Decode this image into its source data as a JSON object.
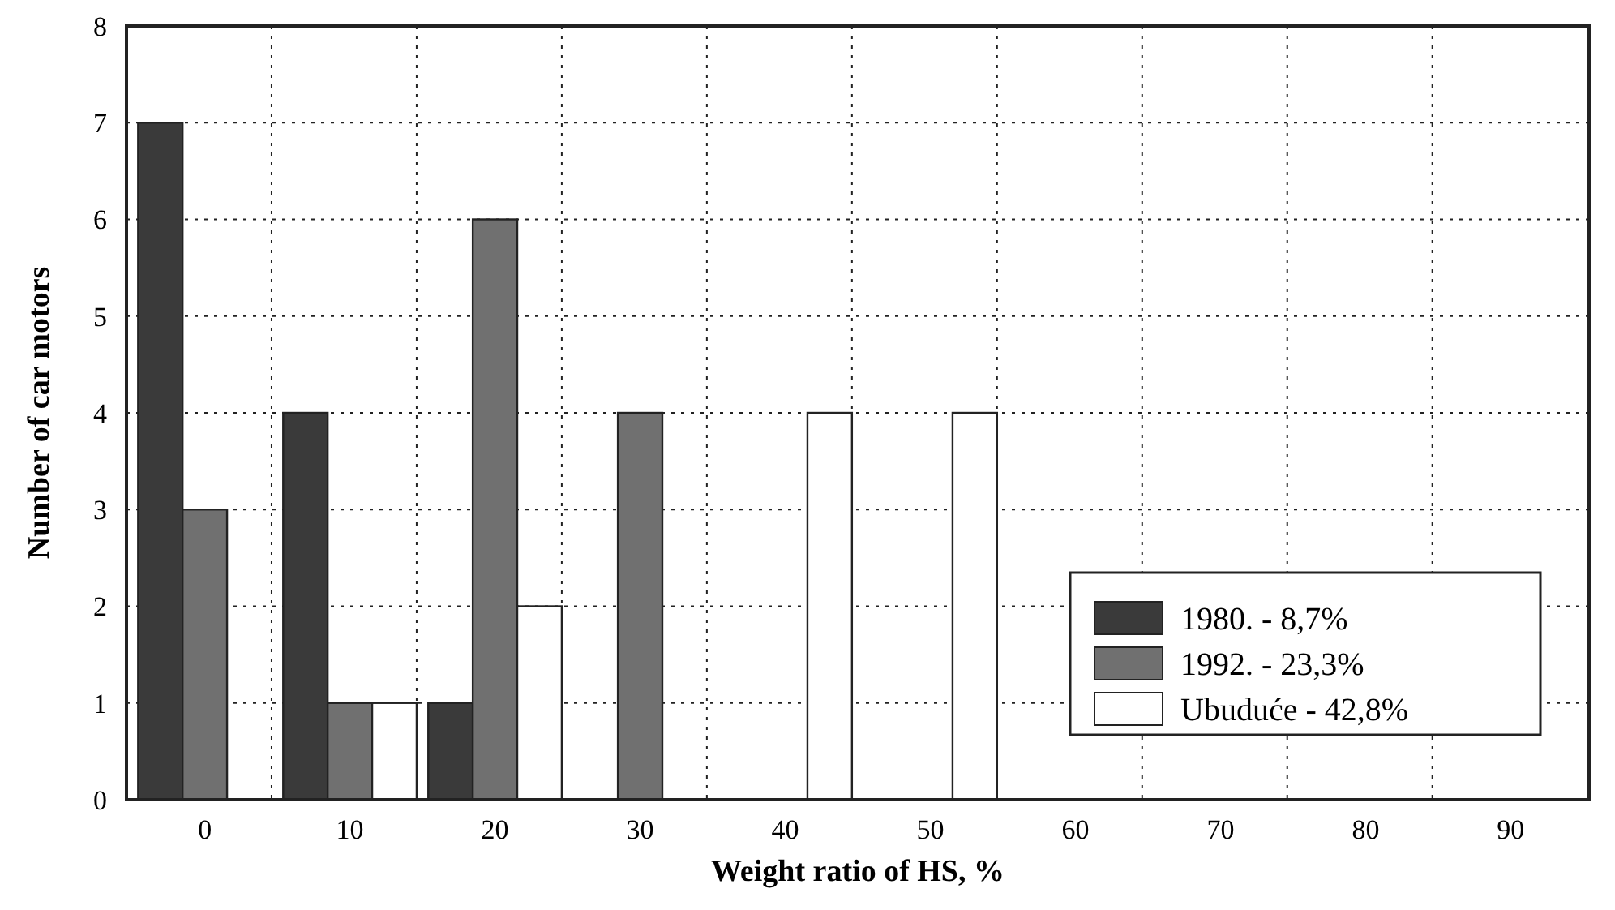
{
  "chart_data": {
    "type": "bar",
    "xlabel": "Weight ratio of HS, %",
    "ylabel": "Number of car motors",
    "categories": [
      "0",
      "10",
      "20",
      "30",
      "40",
      "50",
      "60",
      "70",
      "80",
      "90"
    ],
    "series": [
      {
        "name": "1980. - 8,7%",
        "color": "#3a3a3a",
        "values": [
          7,
          4,
          1,
          0,
          0,
          0,
          0,
          0,
          0,
          0
        ]
      },
      {
        "name": "1992. - 23,3%",
        "color": "#707070",
        "values": [
          3,
          1,
          6,
          4,
          0,
          0,
          0,
          0,
          0,
          0
        ]
      },
      {
        "name": "Ubuduće - 42,8%",
        "color": "#ffffff",
        "values": [
          0,
          1,
          2,
          0,
          4,
          4,
          0,
          0,
          0,
          0
        ]
      }
    ],
    "ylim": [
      0,
      8
    ],
    "yticks": [
      0,
      1,
      2,
      3,
      4,
      5,
      6,
      7,
      8
    ],
    "grid": true,
    "legend": "bottom right"
  }
}
